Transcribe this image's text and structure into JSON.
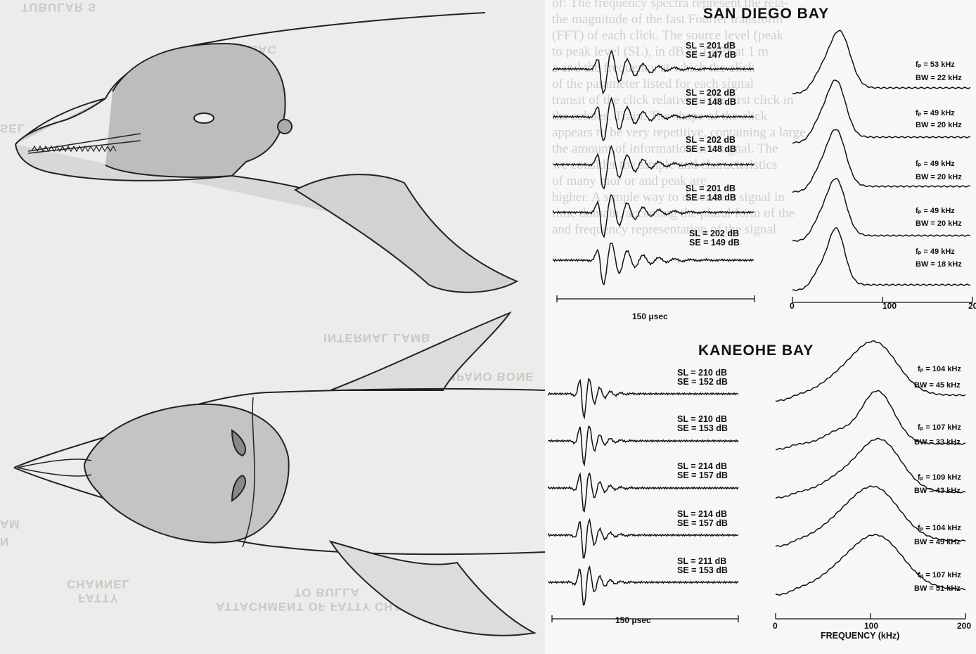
{
  "left_figure": {
    "mirrored_labels": [
      "TUBULAR S",
      "SEL",
      "TUBULAR SAC",
      "INTERNAL LAMB",
      "TYMPANO BONE",
      "FATTY CHANNEL",
      "ATTACHMENT OF FATTY CHANNEL TO BULLA",
      "AM",
      "N"
    ]
  },
  "show_through_text": [
    "of: The frequency spectra represent the rela-",
    "the magnitude of the fast Fourier transform",
    "(FFT) of each click. The source level (peak",
    "to peak level (SL), in dB re 1 μPa at 1 m",
    "a and the frequency at which the click",
    "of the parameter listed for each signal",
    "transit of the click relative to the first click in",
    "the echoes. Train. The shape of the click",
    "appears to be very repetitive, containing a large",
    "the amount of information in a signal. The",
    "we consider the simple and characteristics",
    "of many mor or  and peak are",
    "higher. A simple way to describe a signal in",
    "time domain, accessing the plural form of the",
    "and frequency representation of the signal"
  ],
  "chart_data": [
    {
      "type": "line",
      "title": "SAN DIEGO BAY",
      "time_scale_label": "150 μsec",
      "xlabel": "",
      "x_ticks": [
        "0",
        "100",
        "20"
      ],
      "xlim": [
        0,
        200
      ],
      "series": [
        {
          "name": "SL = 201 dB SE = 147 dB",
          "SL": "SL = 201 dB",
          "SE": "SE = 147 dB",
          "fp": "fₚ = 53 kHz",
          "BW": "BW = 22 kHz",
          "fp_khz": 53,
          "bw_khz": 22
        },
        {
          "name": "SL = 202 dB SE = 148 dB",
          "SL": "SL = 202 dB",
          "SE": "SE = 148 dB",
          "fp": "fₚ = 49 kHz",
          "BW": "BW = 20 kHz",
          "fp_khz": 49,
          "bw_khz": 20
        },
        {
          "name": "SL = 202 dB SE = 148 dB",
          "SL": "SL = 202 dB",
          "SE": "SE = 148 dB",
          "fp": "fₚ = 49 kHz",
          "BW": "BW = 20 kHz",
          "fp_khz": 49,
          "bw_khz": 20
        },
        {
          "name": "SL = 201 dB SE = 148 dB",
          "SL": "SL = 201 dB",
          "SE": "SE = 148 dB",
          "fp": "fₚ = 49 kHz",
          "BW": "BW = 20 kHz",
          "fp_khz": 49,
          "bw_khz": 20
        },
        {
          "name": "SL = 202 dB SE = 149 dB",
          "SL": "SL = 202 dB",
          "SE": "SE = 149 dB",
          "fp": "fₚ = 49 kHz",
          "BW": "BW = 18 kHz",
          "fp_khz": 49,
          "bw_khz": 18
        }
      ]
    },
    {
      "type": "line",
      "title": "KANEOHE BAY",
      "time_scale_label": "150 μsec",
      "xlabel": "FREQUENCY (kHz)",
      "x_ticks": [
        "0",
        "100",
        "200"
      ],
      "xlim": [
        0,
        200
      ],
      "series": [
        {
          "name": "SL = 210 dB SE = 152 dB",
          "SL": "SL = 210 dB",
          "SE": "SE = 152 dB",
          "fp": "fₚ = 104 kHz",
          "BW": "BW = 45 kHz",
          "fp_khz": 104,
          "bw_khz": 45
        },
        {
          "name": "SL = 210 dB SE = 153 dB",
          "SL": "SL = 210 dB",
          "SE": "SE = 153 dB",
          "fp": "fₚ = 107 kHz",
          "BW": "BW = 33 kHz",
          "fp_khz": 107,
          "bw_khz": 33
        },
        {
          "name": "SL = 214 dB SE = 157 dB",
          "SL": "SL = 214 dB",
          "SE": "SE = 157 dB",
          "fp": "fₚ = 109 kHz",
          "BW": "BW = 43 kHz",
          "fp_khz": 109,
          "bw_khz": 43
        },
        {
          "name": "SL = 214 dB SE = 157 dB",
          "SL": "SL = 214 dB",
          "SE": "SE = 157 dB",
          "fp": "fₚ = 104 kHz",
          "BW": "BW = 49 kHz",
          "fp_khz": 104,
          "bw_khz": 49
        },
        {
          "name": "SL = 211 dB SE = 153 dB",
          "SL": "SL = 211 dB",
          "SE": "SE = 153 dB",
          "fp": "fₚ = 107 kHz",
          "BW": "BW = 51 kHz",
          "fp_khz": 107,
          "bw_khz": 51
        }
      ]
    }
  ]
}
